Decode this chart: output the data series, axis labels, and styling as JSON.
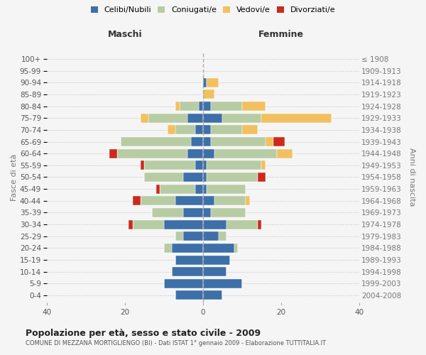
{
  "age_groups": [
    "0-4",
    "5-9",
    "10-14",
    "15-19",
    "20-24",
    "25-29",
    "30-34",
    "35-39",
    "40-44",
    "45-49",
    "50-54",
    "55-59",
    "60-64",
    "65-69",
    "70-74",
    "75-79",
    "80-84",
    "85-89",
    "90-94",
    "95-99",
    "100+"
  ],
  "birth_years": [
    "2004-2008",
    "1999-2003",
    "1994-1998",
    "1989-1993",
    "1984-1988",
    "1979-1983",
    "1974-1978",
    "1969-1973",
    "1964-1968",
    "1959-1963",
    "1954-1958",
    "1949-1953",
    "1944-1948",
    "1939-1943",
    "1934-1938",
    "1929-1933",
    "1924-1928",
    "1919-1923",
    "1914-1918",
    "1909-1913",
    "≤ 1908"
  ],
  "colors": {
    "celibi": "#3d6fa8",
    "coniugati": "#b8cca4",
    "vedovi": "#f2c060",
    "divorziati": "#cc2a1c"
  },
  "maschi": {
    "celibi": [
      7,
      10,
      8,
      7,
      8,
      5,
      10,
      5,
      7,
      2,
      5,
      2,
      4,
      3,
      2,
      4,
      1,
      0,
      0,
      0,
      0
    ],
    "coniugati": [
      0,
      0,
      0,
      0,
      2,
      2,
      8,
      8,
      9,
      9,
      10,
      13,
      18,
      18,
      5,
      10,
      5,
      0,
      0,
      0,
      0
    ],
    "vedovi": [
      0,
      0,
      0,
      0,
      0,
      0,
      0,
      0,
      0,
      0,
      0,
      0,
      0,
      0,
      2,
      2,
      1,
      0,
      0,
      0,
      0
    ],
    "divorziati": [
      0,
      0,
      0,
      0,
      0,
      0,
      1,
      0,
      2,
      1,
      0,
      1,
      2,
      0,
      0,
      0,
      0,
      0,
      0,
      0,
      0
    ]
  },
  "femmine": {
    "celibi": [
      5,
      10,
      6,
      7,
      8,
      4,
      6,
      2,
      3,
      1,
      1,
      1,
      3,
      2,
      2,
      5,
      2,
      0,
      1,
      0,
      0
    ],
    "coniugati": [
      0,
      0,
      0,
      0,
      1,
      2,
      8,
      9,
      8,
      10,
      13,
      14,
      16,
      14,
      8,
      10,
      8,
      0,
      0,
      0,
      0
    ],
    "vedovi": [
      0,
      0,
      0,
      0,
      0,
      0,
      0,
      0,
      1,
      0,
      0,
      1,
      4,
      2,
      4,
      18,
      6,
      3,
      3,
      0,
      0
    ],
    "divorziati": [
      0,
      0,
      0,
      0,
      0,
      0,
      1,
      0,
      0,
      0,
      2,
      0,
      0,
      3,
      0,
      0,
      0,
      0,
      0,
      0,
      0
    ]
  },
  "xlim": 40,
  "title": "Popolazione per età, sesso e stato civile - 2009",
  "subtitle": "COMUNE DI MEZZANA MORTIGLIENGO (BI) - Dati ISTAT 1° gennaio 2009 - Elaborazione TUTTITALIA.IT",
  "ylabel_left": "Fasce di età",
  "ylabel_right": "Anni di nascita",
  "xlabel_left": "Maschi",
  "xlabel_right": "Femmine",
  "legend_labels": [
    "Celibi/Nubili",
    "Coniugati/e",
    "Vedovi/e",
    "Divorziati/e"
  ],
  "bg_color": "#f5f5f5"
}
